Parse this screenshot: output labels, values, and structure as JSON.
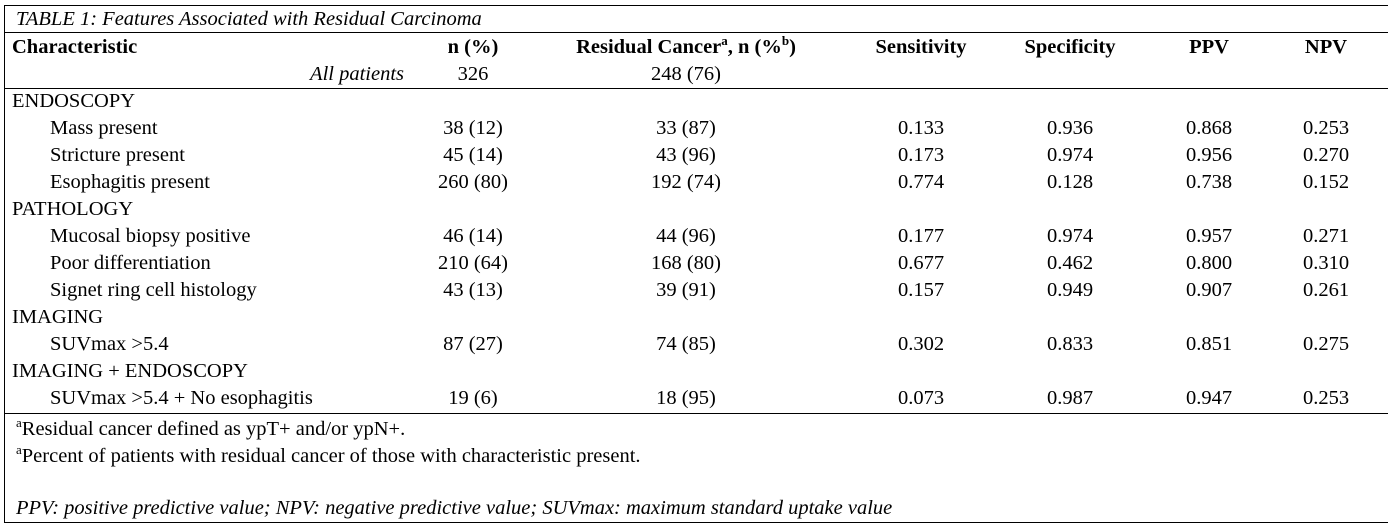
{
  "table": {
    "caption": "TABLE 1: Features Associated with Residual Carcinoma",
    "headers": {
      "characteristic": "Characteristic",
      "n_pct": "n (%)",
      "residual_pre": "Residual Cancer",
      "residual_sup_a": "a",
      "residual_mid": ", n (%",
      "residual_sup_b": "b",
      "residual_post": ")",
      "sensitivity": "Sensitivity",
      "specificity": "Specificity",
      "ppv": "PPV",
      "npv": "NPV"
    },
    "all_patients": {
      "label": "All patients",
      "n": "326",
      "residual": "248 (76)"
    },
    "sections": [
      {
        "title": "ENDOSCOPY",
        "rows": [
          {
            "label": "Mass present",
            "n": "38 (12)",
            "residual": "33 (87)",
            "sensitivity": "0.133",
            "specificity": "0.936",
            "ppv": "0.868",
            "npv": "0.253"
          },
          {
            "label": "Stricture present",
            "n": "45 (14)",
            "residual": "43 (96)",
            "sensitivity": "0.173",
            "specificity": "0.974",
            "ppv": "0.956",
            "npv": "0.270"
          },
          {
            "label": "Esophagitis present",
            "n": "260 (80)",
            "residual": "192 (74)",
            "sensitivity": "0.774",
            "specificity": "0.128",
            "ppv": "0.738",
            "npv": "0.152"
          }
        ]
      },
      {
        "title": "PATHOLOGY",
        "rows": [
          {
            "label": "Mucosal biopsy positive",
            "n": "46 (14)",
            "residual": "44 (96)",
            "sensitivity": "0.177",
            "specificity": "0.974",
            "ppv": "0.957",
            "npv": "0.271"
          },
          {
            "label": "Poor differentiation",
            "n": "210 (64)",
            "residual": "168 (80)",
            "sensitivity": "0.677",
            "specificity": "0.462",
            "ppv": "0.800",
            "npv": "0.310"
          },
          {
            "label": "Signet ring cell histology",
            "n": "43 (13)",
            "residual": "39 (91)",
            "sensitivity": "0.157",
            "specificity": "0.949",
            "ppv": "0.907",
            "npv": "0.261"
          }
        ]
      },
      {
        "title": "IMAGING",
        "rows": [
          {
            "label": "SUVmax >5.4",
            "n": "87 (27)",
            "residual": "74 (85)",
            "sensitivity": "0.302",
            "specificity": "0.833",
            "ppv": "0.851",
            "npv": "0.275"
          }
        ]
      },
      {
        "title": "IMAGING + ENDOSCOPY",
        "rows": [
          {
            "label": "SUVmax >5.4 + No esophagitis",
            "n": "19 (6)",
            "residual": "18 (95)",
            "sensitivity": "0.073",
            "specificity": "0.987",
            "ppv": "0.947",
            "npv": "0.253"
          }
        ]
      }
    ],
    "footnotes": {
      "note1_sup": "a",
      "note1_text": "Residual cancer defined as ypT+ and/or ypN+.",
      "note2_sup": "a",
      "note2_text": "Percent of patients with residual cancer of those with characteristic present.",
      "abbreviations": "PPV: positive predictive value; NPV: negative predictive value; SUVmax: maximum standard uptake value"
    }
  }
}
